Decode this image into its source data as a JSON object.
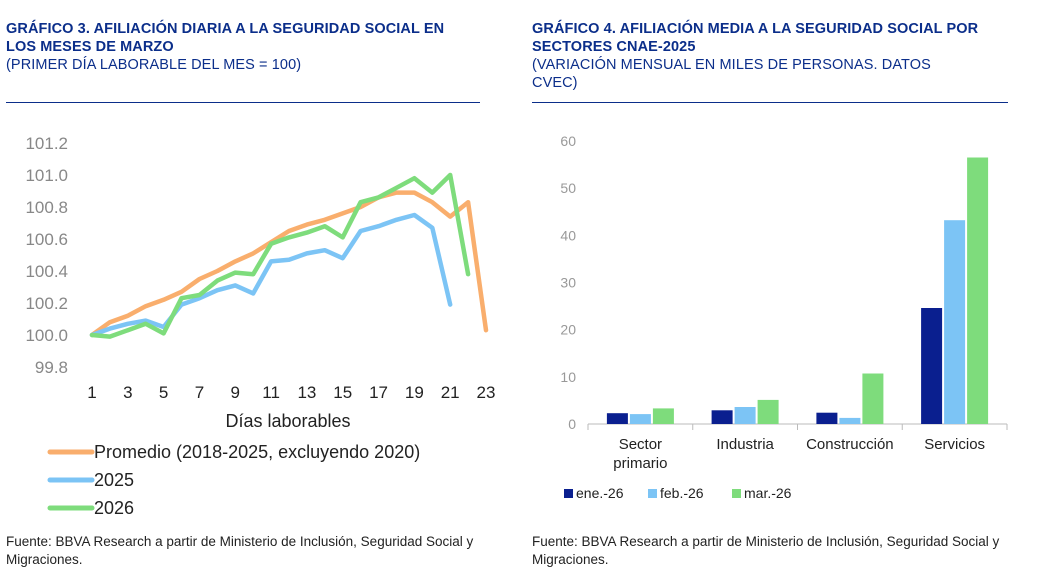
{
  "left": {
    "title_bold": "GRÁFICO 3. AFILIACIÓN DIARIA A LA SEGURIDAD SOCIAL EN LOS MESES DE MARZO",
    "subtitle": "(PRIMER DÍA LABORABLE DEL MES = 100)",
    "source": "Fuente: BBVA Research a partir de Ministerio de Inclusión, Seguridad Social y Migraciones."
  },
  "right": {
    "title_bold": "GRÁFICO 4. AFILIACIÓN MEDIA A LA SEGURIDAD SOCIAL POR SECTORES CNAE-2025",
    "subtitle": "(VARIACIÓN MENSUAL EN MILES DE PERSONAS. DATOS CVEC)",
    "source": "Fuente: BBVA Research a partir de Ministerio de Inclusión, Seguridad Social y Migraciones."
  },
  "chart_data": [
    {
      "type": "line",
      "title": "GRÁFICO 3. AFILIACIÓN DIARIA A LA SEGURIDAD SOCIAL EN LOS MESES DE MARZO",
      "xlabel": "Días laborables",
      "ylabel": "",
      "ylim": [
        99.8,
        101.2
      ],
      "yticks": [
        "99.8",
        "100.0",
        "100.2",
        "100.4",
        "100.6",
        "100.8",
        "101.0",
        "101.2"
      ],
      "xticks": [
        "1",
        "3",
        "5",
        "7",
        "9",
        "11",
        "13",
        "15",
        "17",
        "19",
        "21",
        "23"
      ],
      "xlim": [
        1,
        23
      ],
      "grid": false,
      "legend_position": "bottom",
      "series": [
        {
          "name": "Promedio (2018-2025, excluyendo 2020)",
          "color": "#f9ae6d",
          "x": [
            1,
            2,
            3,
            4,
            5,
            6,
            7,
            8,
            9,
            10,
            11,
            12,
            13,
            14,
            15,
            16,
            17,
            18,
            19,
            20,
            21,
            22,
            23
          ],
          "y": [
            100.0,
            100.08,
            100.12,
            100.18,
            100.22,
            100.27,
            100.35,
            100.4,
            100.46,
            100.51,
            100.58,
            100.65,
            100.69,
            100.72,
            100.76,
            100.8,
            100.86,
            100.89,
            100.89,
            100.83,
            100.74,
            100.83,
            100.03
          ]
        },
        {
          "name": "2025",
          "color": "#7cc4f5",
          "x": [
            1,
            2,
            3,
            4,
            5,
            6,
            7,
            8,
            9,
            10,
            11,
            12,
            13,
            14,
            15,
            16,
            17,
            18,
            19,
            20,
            21
          ],
          "y": [
            100.0,
            100.04,
            100.07,
            100.09,
            100.05,
            100.19,
            100.23,
            100.28,
            100.31,
            100.26,
            100.46,
            100.47,
            100.51,
            100.53,
            100.48,
            100.65,
            100.68,
            100.72,
            100.75,
            100.67,
            100.19
          ]
        },
        {
          "name": "2026",
          "color": "#7edc7c",
          "x": [
            1,
            2,
            3,
            4,
            5,
            6,
            7,
            8,
            9,
            10,
            11,
            12,
            13,
            14,
            15,
            16,
            17,
            18,
            19,
            20,
            21,
            22
          ],
          "y": [
            100.0,
            99.99,
            100.03,
            100.07,
            100.01,
            100.23,
            100.25,
            100.34,
            100.39,
            100.38,
            100.57,
            100.61,
            100.64,
            100.68,
            100.61,
            100.83,
            100.86,
            100.92,
            100.98,
            100.89,
            101.0,
            100.38
          ]
        }
      ]
    },
    {
      "type": "bar",
      "title": "GRÁFICO 4. AFILIACIÓN MEDIA A LA SEGURIDAD SOCIAL POR SECTORES CNAE-2025",
      "categories": [
        "Sector primario",
        "Industria",
        "Construcción",
        "Servicios"
      ],
      "xlabel": "",
      "ylabel": "",
      "ylim": [
        0,
        60
      ],
      "yticks": [
        "0",
        "10",
        "20",
        "30",
        "40",
        "50",
        "60"
      ],
      "grid": false,
      "legend_position": "bottom",
      "series": [
        {
          "name": "ene.-26",
          "color": "#0a1f8f",
          "values": [
            2.3,
            2.9,
            2.4,
            24.6
          ]
        },
        {
          "name": "feb.-26",
          "color": "#7cc4f5",
          "values": [
            2.1,
            3.6,
            1.3,
            43.2
          ]
        },
        {
          "name": "mar.-26",
          "color": "#7edc7c",
          "values": [
            3.3,
            5.1,
            10.7,
            56.5
          ]
        }
      ]
    }
  ]
}
